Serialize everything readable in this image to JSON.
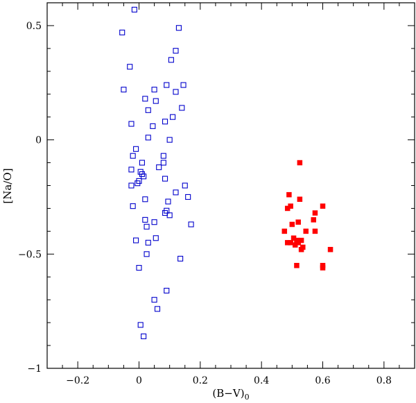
{
  "chart_data": {
    "type": "scatter",
    "title": "",
    "xlabel": "(B−V)",
    "xlabel_subscript": "0",
    "ylabel": "[Na/O]",
    "xlim": [
      -0.3,
      0.9
    ],
    "ylim": [
      -1.0,
      0.6
    ],
    "x_ticks_major": [
      -0.2,
      0,
      0.2,
      0.4,
      0.6,
      0.8
    ],
    "x_tick_labels": [
      "−0.2",
      "0",
      "0.2",
      "0.4",
      "0.6",
      "0.8"
    ],
    "y_ticks_major": [
      -1,
      -0.5,
      0,
      0.5
    ],
    "y_tick_labels": [
      "−1",
      "−0.5",
      "0",
      "0.5"
    ],
    "grid": false,
    "series": [
      {
        "name": "open squares",
        "marker": "open-square",
        "color": "#0000cc",
        "x": [
          -0.015,
          0.13,
          -0.055,
          0.12,
          0.105,
          -0.03,
          -0.05,
          0.145,
          0.09,
          0.05,
          0.12,
          0.02,
          0.055,
          0.14,
          0.03,
          0.11,
          0.085,
          -0.025,
          0.045,
          0.03,
          0.1,
          -0.01,
          -0.02,
          0.08,
          0.01,
          0.08,
          0.065,
          -0.025,
          0.005,
          0.01,
          0.015,
          0.0,
          0.085,
          -0.005,
          -0.025,
          0.15,
          0.12,
          0.16,
          0.02,
          0.095,
          0.09,
          -0.02,
          0.085,
          0.02,
          0.1,
          0.05,
          0.025,
          0.17,
          0.055,
          -0.01,
          0.03,
          0.025,
          0.135,
          0.0,
          0.09,
          0.05,
          0.06,
          0.005,
          0.015
        ],
        "y": [
          0.57,
          0.49,
          0.47,
          0.39,
          0.35,
          0.32,
          0.22,
          0.24,
          0.24,
          0.22,
          0.21,
          0.18,
          0.17,
          0.14,
          0.13,
          0.1,
          0.08,
          0.07,
          0.06,
          0.01,
          0.0,
          -0.04,
          -0.07,
          -0.07,
          -0.1,
          -0.1,
          -0.12,
          -0.13,
          -0.14,
          -0.15,
          -0.16,
          -0.18,
          -0.17,
          -0.19,
          -0.2,
          -0.2,
          -0.23,
          -0.25,
          -0.26,
          -0.27,
          -0.31,
          -0.29,
          -0.32,
          -0.35,
          -0.33,
          -0.36,
          -0.38,
          -0.37,
          -0.43,
          -0.44,
          -0.45,
          -0.5,
          -0.52,
          -0.56,
          -0.66,
          -0.7,
          -0.74,
          -0.81,
          -0.86
        ]
      },
      {
        "name": "filled squares",
        "marker": "filled-square",
        "color": "#ff0000",
        "x": [
          0.525,
          0.49,
          0.525,
          0.6,
          0.485,
          0.495,
          0.575,
          0.57,
          0.52,
          0.475,
          0.545,
          0.575,
          0.5,
          0.505,
          0.515,
          0.53,
          0.485,
          0.495,
          0.51,
          0.52,
          0.535,
          0.53,
          0.625,
          0.515,
          0.6,
          0.6
        ],
        "y": [
          -0.1,
          -0.24,
          -0.26,
          -0.29,
          -0.3,
          -0.29,
          -0.32,
          -0.35,
          -0.36,
          -0.4,
          -0.4,
          -0.4,
          -0.37,
          -0.43,
          -0.44,
          -0.44,
          -0.45,
          -0.45,
          -0.46,
          -0.45,
          -0.47,
          -0.48,
          -0.48,
          -0.55,
          -0.55,
          -0.56
        ]
      }
    ]
  }
}
